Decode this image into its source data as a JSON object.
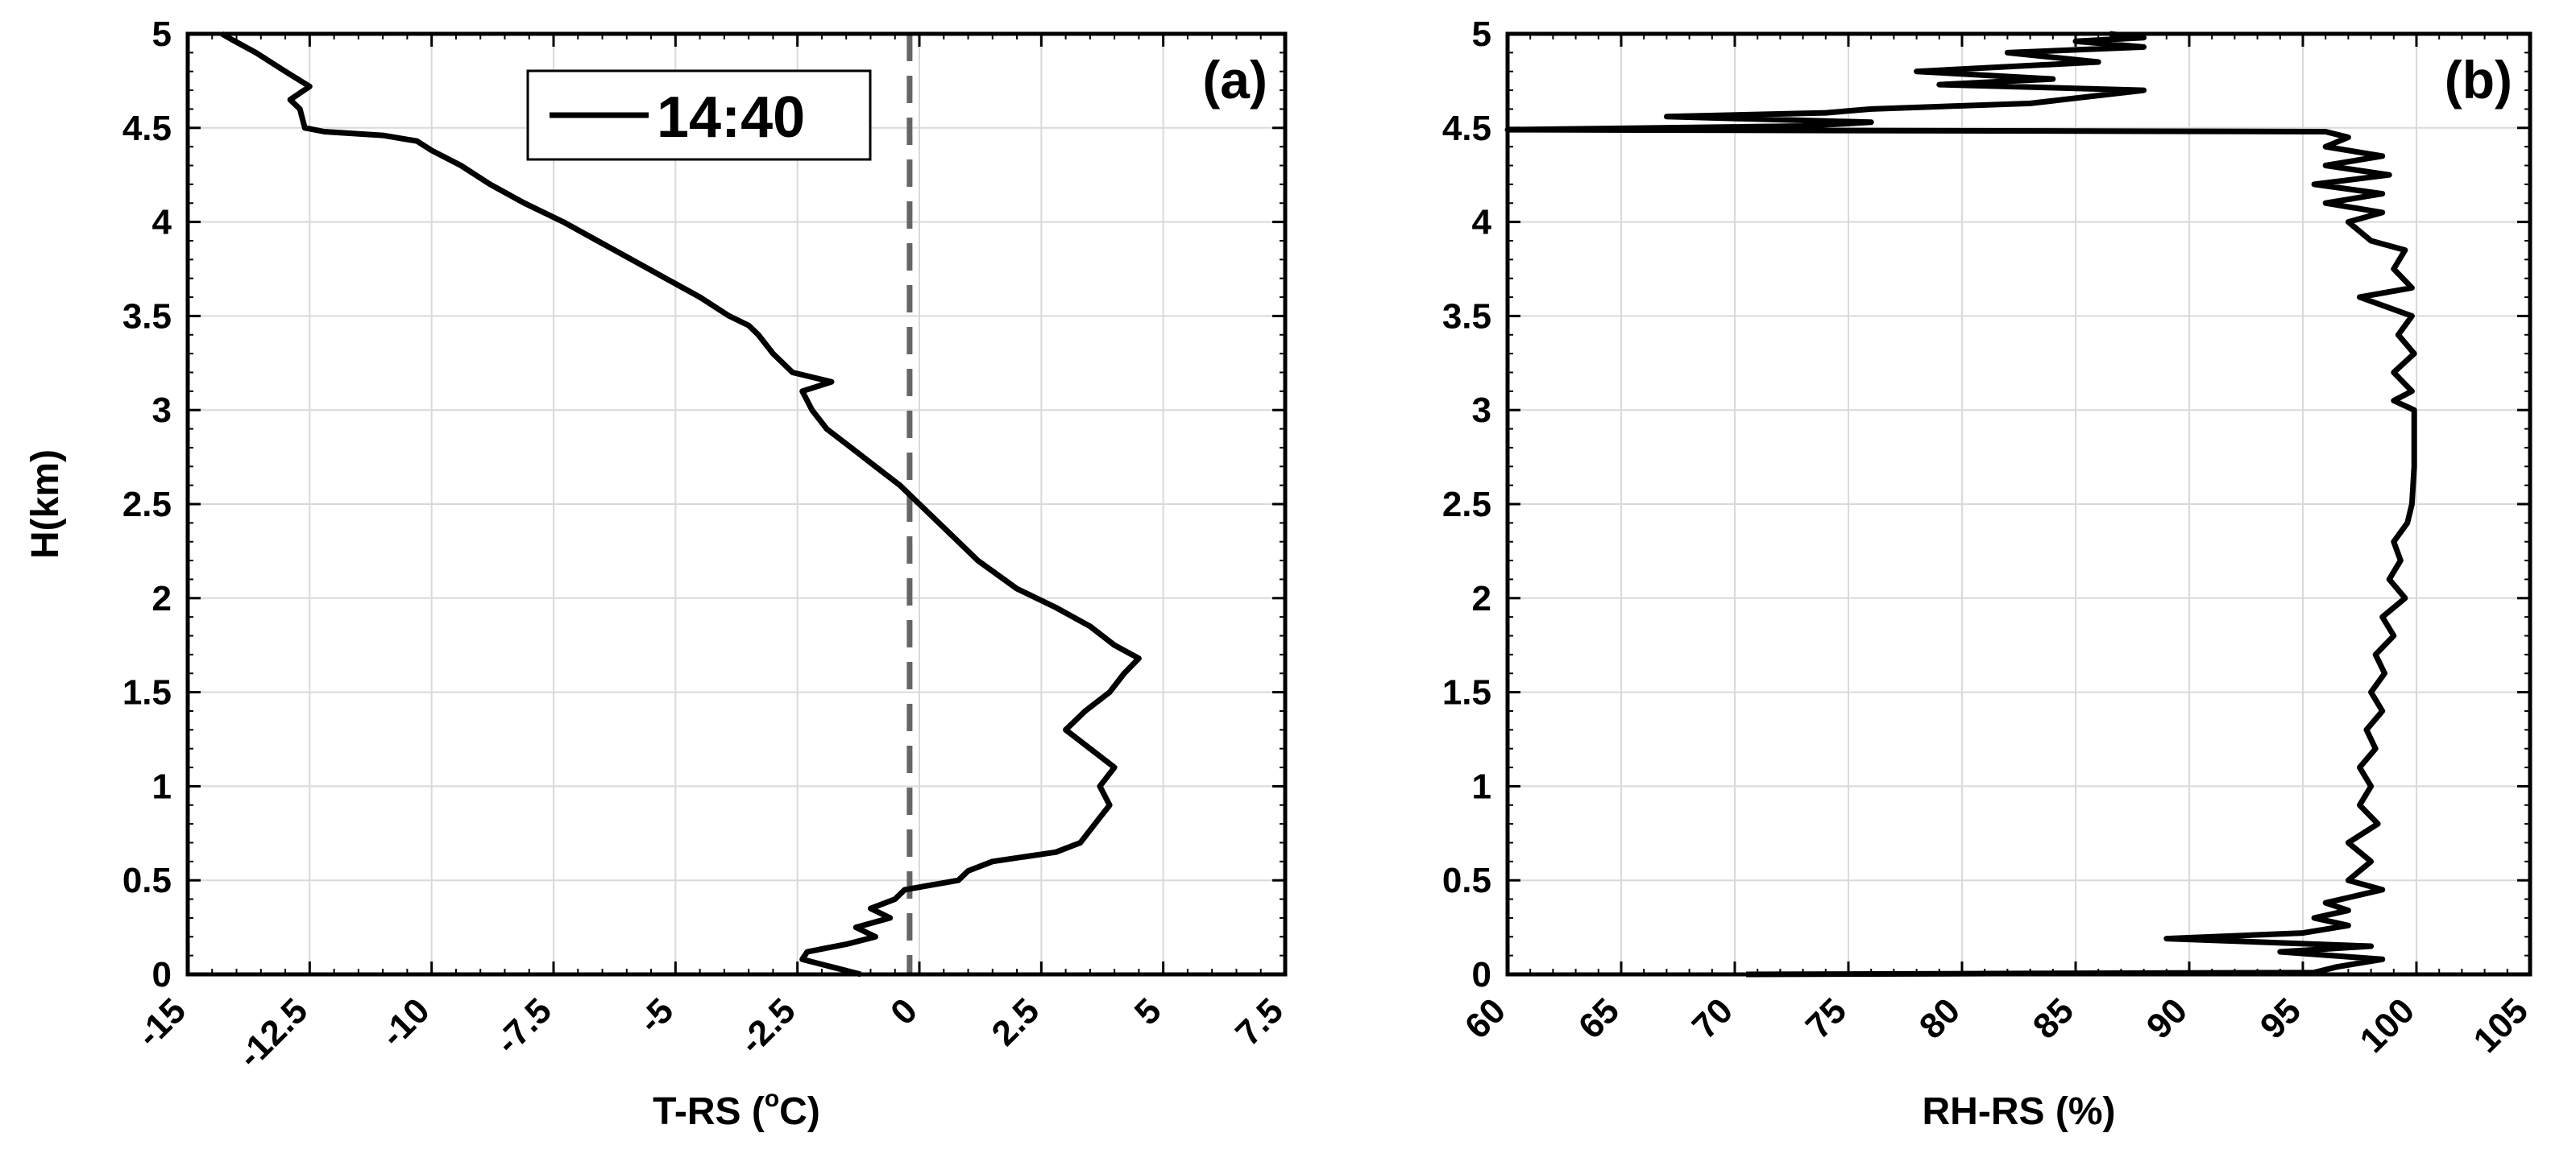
{
  "chart_data": [
    {
      "panel": "(a)",
      "type": "line",
      "xlabel": "T-RS (°C)",
      "xlabel_parts": {
        "pre": "T-RS (",
        "sup": "o",
        "post": "C)"
      },
      "ylabel": "H(km)",
      "xlim": [
        -15,
        7.5
      ],
      "ylim": [
        0,
        5
      ],
      "xticks": [
        -15,
        -12.5,
        -10,
        -7.5,
        -5,
        -2.5,
        0,
        2.5,
        5,
        7.5
      ],
      "xtick_labels": [
        "-15",
        "-12.5",
        "-10",
        "-7.5",
        "-5",
        "-2.5",
        "0",
        "2.5",
        "5",
        "7.5"
      ],
      "yticks": [
        0,
        0.5,
        1,
        1.5,
        2,
        2.5,
        3,
        3.5,
        4,
        4.5,
        5
      ],
      "ytick_labels": [
        "0",
        "0.5",
        "1",
        "1.5",
        "2",
        "2.5",
        "3",
        "3.5",
        "4",
        "4.5",
        "5"
      ],
      "grid": true,
      "legend": {
        "position": "top-center",
        "entries": [
          "14:40"
        ]
      },
      "reference_line": {
        "x": -0.2,
        "style": "dashed",
        "color": "#666666"
      },
      "series": [
        {
          "name": "14:40",
          "color": "#000000",
          "points": [
            [
              -1.2,
              0.0
            ],
            [
              -1.8,
              0.04
            ],
            [
              -2.4,
              0.08
            ],
            [
              -2.3,
              0.12
            ],
            [
              -1.5,
              0.16
            ],
            [
              -0.9,
              0.2
            ],
            [
              -1.3,
              0.25
            ],
            [
              -0.6,
              0.3
            ],
            [
              -1.0,
              0.35
            ],
            [
              -0.5,
              0.4
            ],
            [
              -0.3,
              0.45
            ],
            [
              0.8,
              0.5
            ],
            [
              1.0,
              0.55
            ],
            [
              1.5,
              0.6
            ],
            [
              2.8,
              0.65
            ],
            [
              3.3,
              0.7
            ],
            [
              3.6,
              0.8
            ],
            [
              3.9,
              0.9
            ],
            [
              3.7,
              1.0
            ],
            [
              4.0,
              1.1
            ],
            [
              3.5,
              1.2
            ],
            [
              3.0,
              1.3
            ],
            [
              3.4,
              1.4
            ],
            [
              3.9,
              1.5
            ],
            [
              4.2,
              1.6
            ],
            [
              4.5,
              1.68
            ],
            [
              4.0,
              1.75
            ],
            [
              3.5,
              1.85
            ],
            [
              2.8,
              1.95
            ],
            [
              2.0,
              2.05
            ],
            [
              1.2,
              2.2
            ],
            [
              0.6,
              2.35
            ],
            [
              0.0,
              2.5
            ],
            [
              -0.4,
              2.6
            ],
            [
              -0.9,
              2.7
            ],
            [
              -1.4,
              2.8
            ],
            [
              -1.9,
              2.9
            ],
            [
              -2.2,
              3.0
            ],
            [
              -2.4,
              3.1
            ],
            [
              -1.8,
              3.15
            ],
            [
              -2.6,
              3.2
            ],
            [
              -3.0,
              3.3
            ],
            [
              -3.3,
              3.4
            ],
            [
              -3.5,
              3.45
            ],
            [
              -3.9,
              3.5
            ],
            [
              -4.5,
              3.6
            ],
            [
              -5.2,
              3.7
            ],
            [
              -5.9,
              3.8
            ],
            [
              -6.6,
              3.9
            ],
            [
              -7.3,
              4.0
            ],
            [
              -8.1,
              4.1
            ],
            [
              -8.8,
              4.2
            ],
            [
              -9.4,
              4.3
            ],
            [
              -10.0,
              4.38
            ],
            [
              -10.3,
              4.43
            ],
            [
              -11.0,
              4.46
            ],
            [
              -12.2,
              4.48
            ],
            [
              -12.6,
              4.5
            ],
            [
              -12.7,
              4.6
            ],
            [
              -12.9,
              4.65
            ],
            [
              -12.5,
              4.72
            ],
            [
              -13.0,
              4.8
            ],
            [
              -13.6,
              4.9
            ],
            [
              -14.1,
              4.97
            ],
            [
              -14.3,
              5.0
            ]
          ]
        }
      ]
    },
    {
      "panel": "(b)",
      "type": "line",
      "xlabel": "RH-RS (%)",
      "ylabel": "",
      "xlim": [
        60,
        105
      ],
      "ylim": [
        0,
        5
      ],
      "xticks": [
        60,
        65,
        70,
        75,
        80,
        85,
        90,
        95,
        100,
        105
      ],
      "xtick_labels": [
        "60",
        "65",
        "70",
        "75",
        "80",
        "85",
        "90",
        "95",
        "100",
        "105"
      ],
      "yticks": [
        0,
        0.5,
        1,
        1.5,
        2,
        2.5,
        3,
        3.5,
        4,
        4.5,
        5
      ],
      "ytick_labels": [
        "0",
        "0.5",
        "1",
        "1.5",
        "2",
        "2.5",
        "3",
        "3.5",
        "4",
        "4.5",
        "5"
      ],
      "grid": true,
      "series": [
        {
          "color": "#000000",
          "points": [
            [
              70.5,
              0.0
            ],
            [
              95.5,
              0.01
            ],
            [
              96.5,
              0.04
            ],
            [
              98.5,
              0.08
            ],
            [
              94.0,
              0.12
            ],
            [
              98.0,
              0.15
            ],
            [
              89.0,
              0.19
            ],
            [
              95.0,
              0.22
            ],
            [
              97.0,
              0.26
            ],
            [
              95.5,
              0.3
            ],
            [
              97.0,
              0.34
            ],
            [
              96.0,
              0.38
            ],
            [
              98.5,
              0.45
            ],
            [
              97.0,
              0.5
            ],
            [
              98.0,
              0.6
            ],
            [
              97.0,
              0.7
            ],
            [
              98.3,
              0.8
            ],
            [
              97.5,
              0.9
            ],
            [
              98.0,
              1.0
            ],
            [
              97.5,
              1.1
            ],
            [
              98.2,
              1.2
            ],
            [
              97.8,
              1.3
            ],
            [
              98.5,
              1.4
            ],
            [
              98.0,
              1.5
            ],
            [
              98.6,
              1.6
            ],
            [
              98.2,
              1.7
            ],
            [
              99.0,
              1.8
            ],
            [
              98.5,
              1.9
            ],
            [
              99.5,
              2.0
            ],
            [
              98.8,
              2.1
            ],
            [
              99.3,
              2.2
            ],
            [
              99.0,
              2.3
            ],
            [
              99.6,
              2.4
            ],
            [
              99.8,
              2.5
            ],
            [
              99.9,
              2.7
            ],
            [
              99.9,
              3.0
            ],
            [
              99.0,
              3.05
            ],
            [
              99.8,
              3.1
            ],
            [
              99.0,
              3.2
            ],
            [
              99.9,
              3.3
            ],
            [
              99.2,
              3.4
            ],
            [
              99.8,
              3.5
            ],
            [
              97.5,
              3.6
            ],
            [
              99.8,
              3.65
            ],
            [
              99.0,
              3.75
            ],
            [
              99.5,
              3.85
            ],
            [
              98.0,
              3.9
            ],
            [
              97.0,
              4.0
            ],
            [
              98.5,
              4.05
            ],
            [
              96.0,
              4.1
            ],
            [
              98.5,
              4.15
            ],
            [
              95.5,
              4.2
            ],
            [
              98.8,
              4.25
            ],
            [
              96.0,
              4.3
            ],
            [
              98.5,
              4.35
            ],
            [
              96.0,
              4.4
            ],
            [
              97.0,
              4.45
            ],
            [
              96.0,
              4.48
            ],
            [
              60.0,
              4.49
            ],
            [
              73.0,
              4.51
            ],
            [
              76.0,
              4.53
            ],
            [
              67.0,
              4.56
            ],
            [
              74.0,
              4.58
            ],
            [
              76.0,
              4.6
            ],
            [
              83.0,
              4.63
            ],
            [
              88.0,
              4.7
            ],
            [
              79.0,
              4.73
            ],
            [
              84.0,
              4.76
            ],
            [
              78.0,
              4.8
            ],
            [
              86.0,
              4.85
            ],
            [
              82.0,
              4.9
            ],
            [
              88.0,
              4.93
            ],
            [
              85.0,
              4.96
            ],
            [
              88.0,
              4.98
            ],
            [
              86.5,
              5.0
            ]
          ]
        }
      ]
    }
  ]
}
